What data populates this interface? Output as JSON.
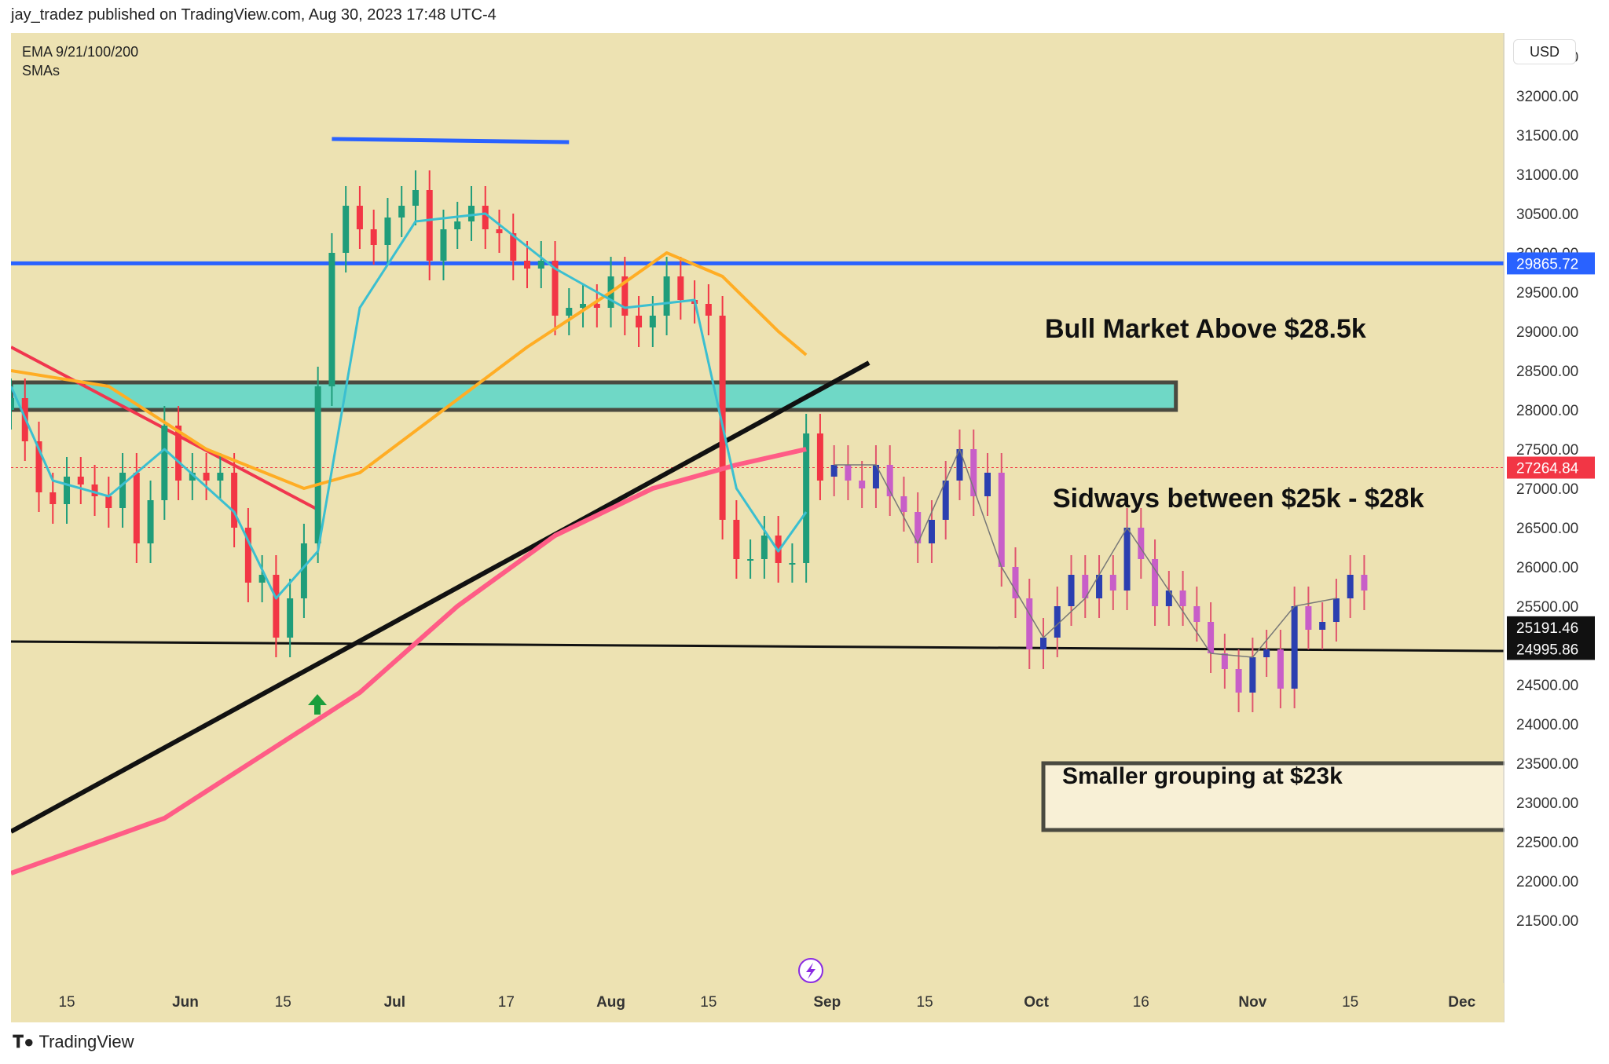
{
  "header": {
    "publisher_line": "jay_tradez published on TradingView.com, Aug 30, 2023 17:48 UTC-4"
  },
  "legend": {
    "line1": "EMA 9/21/100/200",
    "line2": "SMAs"
  },
  "currency": "USD",
  "footer": {
    "brand": "TradingView",
    "logo_icon": "tradingview-logo-icon"
  },
  "colors": {
    "background": "#ede2b2",
    "up_candle": "#1f9d7a",
    "down_candle": "#f23645",
    "blue_line": "#2962ff",
    "zone_fill": "#6fd8c6",
    "ema_cyan": "#3bbfd0",
    "ema_orange": "#ffad24",
    "ema_pink": "#ff5c86",
    "trend_red": "#f0364e"
  },
  "annotations": {
    "bull_market": "Bull Market Above $28.5k",
    "sideways": "Sidways between $25k - $28k",
    "smaller_grouping": "Smaller grouping at $23k"
  },
  "price_tags": {
    "resistance": "29865.72",
    "current": "27264.84",
    "tag_a": "25191.46",
    "tag_b": "24995.86"
  },
  "chart_data": {
    "type": "candlestick",
    "title": "",
    "xlabel": "",
    "ylabel": "",
    "ylim": [
      21000,
      32800
    ],
    "y_ticks": [
      "32500.00",
      "32000.00",
      "31500.00",
      "31000.00",
      "30500.00",
      "30000.00",
      "29500.00",
      "29000.00",
      "28500.00",
      "28000.00",
      "27500.00",
      "27000.00",
      "26500.00",
      "26000.00",
      "25500.00",
      "25000.00",
      "24500.00",
      "24000.00",
      "23500.00",
      "23000.00",
      "22500.00",
      "22000.00",
      "21500.00"
    ],
    "x_ticks": [
      {
        "label": "15",
        "date": "2023-05-15",
        "bold": false
      },
      {
        "label": "Jun",
        "date": "2023-06-01",
        "bold": true
      },
      {
        "label": "15",
        "date": "2023-06-15",
        "bold": false
      },
      {
        "label": "Jul",
        "date": "2023-07-01",
        "bold": true
      },
      {
        "label": "17",
        "date": "2023-07-17",
        "bold": false
      },
      {
        "label": "Aug",
        "date": "2023-08-01",
        "bold": true
      },
      {
        "label": "15",
        "date": "2023-08-15",
        "bold": false
      },
      {
        "label": "Sep",
        "date": "2023-09-01",
        "bold": true
      },
      {
        "label": "15",
        "date": "2023-09-15",
        "bold": false
      },
      {
        "label": "Oct",
        "date": "2023-10-01",
        "bold": true
      },
      {
        "label": "16",
        "date": "2023-10-16",
        "bold": false
      },
      {
        "label": "Nov",
        "date": "2023-11-01",
        "bold": true
      },
      {
        "label": "15",
        "date": "2023-11-15",
        "bold": false
      },
      {
        "label": "Dec",
        "date": "2023-12-01",
        "bold": true
      }
    ],
    "x_start": "2023-05-07",
    "x_end": "2023-12-07",
    "candles_real": [
      {
        "date": "2023-05-07",
        "close": 28150
      },
      {
        "date": "2023-05-09",
        "close": 27600
      },
      {
        "date": "2023-05-11",
        "close": 26950
      },
      {
        "date": "2023-05-13",
        "close": 26800
      },
      {
        "date": "2023-05-15",
        "close": 27150
      },
      {
        "date": "2023-05-17",
        "close": 27050
      },
      {
        "date": "2023-05-19",
        "close": 26900
      },
      {
        "date": "2023-05-21",
        "close": 26750
      },
      {
        "date": "2023-05-23",
        "close": 27200
      },
      {
        "date": "2023-05-25",
        "close": 26300
      },
      {
        "date": "2023-05-27",
        "close": 26850
      },
      {
        "date": "2023-05-29",
        "close": 27800
      },
      {
        "date": "2023-05-31",
        "close": 27100
      },
      {
        "date": "2023-06-02",
        "close": 27200
      },
      {
        "date": "2023-06-04",
        "close": 27100
      },
      {
        "date": "2023-06-06",
        "close": 27200
      },
      {
        "date": "2023-06-08",
        "close": 26500
      },
      {
        "date": "2023-06-10",
        "close": 25800
      },
      {
        "date": "2023-06-12",
        "close": 25900
      },
      {
        "date": "2023-06-14",
        "close": 25100
      },
      {
        "date": "2023-06-16",
        "close": 25600
      },
      {
        "date": "2023-06-18",
        "close": 26300
      },
      {
        "date": "2023-06-20",
        "close": 28300
      },
      {
        "date": "2023-06-22",
        "close": 30000
      },
      {
        "date": "2023-06-24",
        "close": 30600
      },
      {
        "date": "2023-06-26",
        "close": 30300
      },
      {
        "date": "2023-06-28",
        "close": 30100
      },
      {
        "date": "2023-06-30",
        "close": 30450
      },
      {
        "date": "2023-07-02",
        "close": 30600
      },
      {
        "date": "2023-07-04",
        "close": 30800
      },
      {
        "date": "2023-07-06",
        "close": 29900
      },
      {
        "date": "2023-07-08",
        "close": 30300
      },
      {
        "date": "2023-07-10",
        "close": 30400
      },
      {
        "date": "2023-07-12",
        "close": 30600
      },
      {
        "date": "2023-07-14",
        "close": 30300
      },
      {
        "date": "2023-07-16",
        "close": 30250
      },
      {
        "date": "2023-07-18",
        "close": 29900
      },
      {
        "date": "2023-07-20",
        "close": 29800
      },
      {
        "date": "2023-07-22",
        "close": 29900
      },
      {
        "date": "2023-07-24",
        "close": 29200
      },
      {
        "date": "2023-07-26",
        "close": 29300
      },
      {
        "date": "2023-07-28",
        "close": 29350
      },
      {
        "date": "2023-07-30",
        "close": 29300
      },
      {
        "date": "2023-08-01",
        "close": 29700
      },
      {
        "date": "2023-08-03",
        "close": 29200
      },
      {
        "date": "2023-08-05",
        "close": 29050
      },
      {
        "date": "2023-08-07",
        "close": 29200
      },
      {
        "date": "2023-08-09",
        "close": 29700
      },
      {
        "date": "2023-08-11",
        "close": 29400
      },
      {
        "date": "2023-08-13",
        "close": 29350
      },
      {
        "date": "2023-08-15",
        "close": 29200
      },
      {
        "date": "2023-08-17",
        "close": 26600
      },
      {
        "date": "2023-08-19",
        "close": 26100
      },
      {
        "date": "2023-08-21",
        "close": 26100
      },
      {
        "date": "2023-08-23",
        "close": 26400
      },
      {
        "date": "2023-08-25",
        "close": 26050
      },
      {
        "date": "2023-08-27",
        "close": 26050
      },
      {
        "date": "2023-08-29",
        "close": 27700
      },
      {
        "date": "2023-08-31",
        "close": 27100
      }
    ],
    "candles_projected": [
      {
        "date": "2023-09-02",
        "close": 27300
      },
      {
        "date": "2023-09-04",
        "close": 27100
      },
      {
        "date": "2023-09-06",
        "close": 27000
      },
      {
        "date": "2023-09-08",
        "close": 27300
      },
      {
        "date": "2023-09-10",
        "close": 26900
      },
      {
        "date": "2023-09-12",
        "close": 26700
      },
      {
        "date": "2023-09-14",
        "close": 26300
      },
      {
        "date": "2023-09-16",
        "close": 26600
      },
      {
        "date": "2023-09-18",
        "close": 27100
      },
      {
        "date": "2023-09-20",
        "close": 27500
      },
      {
        "date": "2023-09-22",
        "close": 26900
      },
      {
        "date": "2023-09-24",
        "close": 27200
      },
      {
        "date": "2023-09-26",
        "close": 26000
      },
      {
        "date": "2023-09-28",
        "close": 25600
      },
      {
        "date": "2023-09-30",
        "close": 24950
      },
      {
        "date": "2023-10-02",
        "close": 25100
      },
      {
        "date": "2023-10-04",
        "close": 25500
      },
      {
        "date": "2023-10-06",
        "close": 25900
      },
      {
        "date": "2023-10-08",
        "close": 25600
      },
      {
        "date": "2023-10-10",
        "close": 25900
      },
      {
        "date": "2023-10-12",
        "close": 25700
      },
      {
        "date": "2023-10-14",
        "close": 26500
      },
      {
        "date": "2023-10-16",
        "close": 26100
      },
      {
        "date": "2023-10-18",
        "close": 25500
      },
      {
        "date": "2023-10-20",
        "close": 25700
      },
      {
        "date": "2023-10-22",
        "close": 25500
      },
      {
        "date": "2023-10-24",
        "close": 25300
      },
      {
        "date": "2023-10-26",
        "close": 24900
      },
      {
        "date": "2023-10-28",
        "close": 24700
      },
      {
        "date": "2023-10-30",
        "close": 24400
      },
      {
        "date": "2023-11-01",
        "close": 24850
      },
      {
        "date": "2023-11-03",
        "close": 24950
      },
      {
        "date": "2023-11-05",
        "close": 24450
      },
      {
        "date": "2023-11-07",
        "close": 25500
      },
      {
        "date": "2023-11-09",
        "close": 25200
      },
      {
        "date": "2023-11-11",
        "close": 25300
      },
      {
        "date": "2023-11-13",
        "close": 25600
      },
      {
        "date": "2023-11-15",
        "close": 25900
      },
      {
        "date": "2023-11-17",
        "close": 25700
      }
    ],
    "ema_cyan": [
      {
        "date": "2023-05-07",
        "value": 28300
      },
      {
        "date": "2023-05-13",
        "value": 27100
      },
      {
        "date": "2023-05-21",
        "value": 26900
      },
      {
        "date": "2023-05-29",
        "value": 27500
      },
      {
        "date": "2023-06-08",
        "value": 26700
      },
      {
        "date": "2023-06-14",
        "value": 25600
      },
      {
        "date": "2023-06-20",
        "value": 26200
      },
      {
        "date": "2023-06-26",
        "value": 29300
      },
      {
        "date": "2023-07-04",
        "value": 30400
      },
      {
        "date": "2023-07-14",
        "value": 30500
      },
      {
        "date": "2023-07-24",
        "value": 29800
      },
      {
        "date": "2023-08-03",
        "value": 29300
      },
      {
        "date": "2023-08-13",
        "value": 29400
      },
      {
        "date": "2023-08-19",
        "value": 27000
      },
      {
        "date": "2023-08-25",
        "value": 26200
      },
      {
        "date": "2023-08-29",
        "value": 26700
      }
    ],
    "ema_orange": [
      {
        "date": "2023-05-07",
        "value": 28500
      },
      {
        "date": "2023-05-21",
        "value": 28300
      },
      {
        "date": "2023-06-04",
        "value": 27500
      },
      {
        "date": "2023-06-18",
        "value": 27000
      },
      {
        "date": "2023-06-26",
        "value": 27200
      },
      {
        "date": "2023-07-08",
        "value": 28000
      },
      {
        "date": "2023-07-20",
        "value": 28800
      },
      {
        "date": "2023-08-01",
        "value": 29500
      },
      {
        "date": "2023-08-09",
        "value": 30000
      },
      {
        "date": "2023-08-17",
        "value": 29700
      },
      {
        "date": "2023-08-25",
        "value": 29000
      },
      {
        "date": "2023-08-29",
        "value": 28700
      }
    ],
    "ema_pink": [
      {
        "date": "2023-05-07",
        "value": 22100
      },
      {
        "date": "2023-05-29",
        "value": 22800
      },
      {
        "date": "2023-06-12",
        "value": 23600
      },
      {
        "date": "2023-06-26",
        "value": 24400
      },
      {
        "date": "2023-07-10",
        "value": 25500
      },
      {
        "date": "2023-07-24",
        "value": 26400
      },
      {
        "date": "2023-08-07",
        "value": 27000
      },
      {
        "date": "2023-08-19",
        "value": 27300
      },
      {
        "date": "2023-08-29",
        "value": 27500
      }
    ],
    "levels": {
      "resistance": 29865.72,
      "support": 24995.86,
      "zone": [
        28000,
        28350
      ],
      "lower_box": [
        22650,
        23500
      ],
      "top_line": 31450
    }
  }
}
